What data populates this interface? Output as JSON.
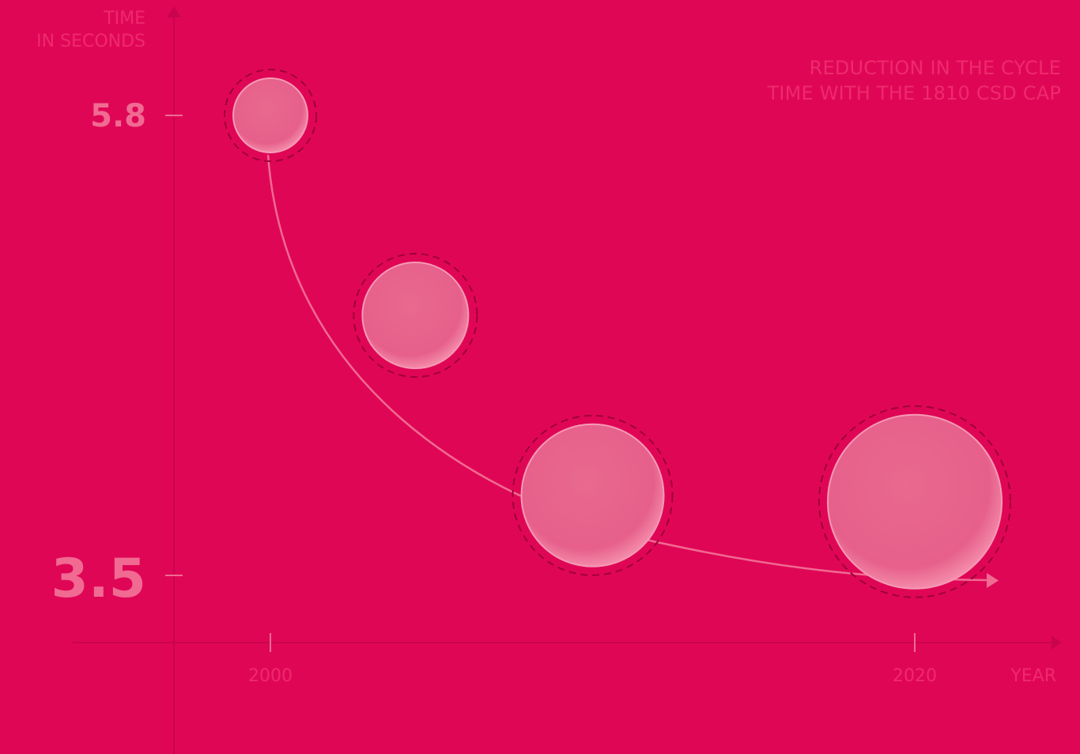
{
  "chart_data": {
    "type": "scatter",
    "title_lines": [
      "REDUCTION IN THE CYCLE",
      "TIME WITH THE 1810 CSD CAP"
    ],
    "ylabel_lines": [
      "TIME",
      "IN SECONDS"
    ],
    "xlabel": "YEAR",
    "y_ticks": [
      "5.8",
      "3.5"
    ],
    "x_ticks": [
      "2000",
      "2020"
    ],
    "ylim": [
      3.5,
      5.8
    ],
    "xlim": [
      2000,
      2020
    ],
    "points": [
      {
        "x": 2000,
        "y": 5.8
      },
      {
        "x": 2004.5,
        "y": 4.8
      },
      {
        "x": 2010,
        "y": 3.9
      },
      {
        "x": 2020,
        "y": 3.9
      }
    ],
    "trend_curve": true,
    "grid": false
  },
  "colors": {
    "background": "#e00656",
    "axis": "#c8044d",
    "muted_text": "#ee2a6c",
    "tick_value": "#f06a92",
    "bubble_fill": "#e8638f",
    "curve": "#f06a92",
    "dashed_ring": "#9e0038"
  }
}
